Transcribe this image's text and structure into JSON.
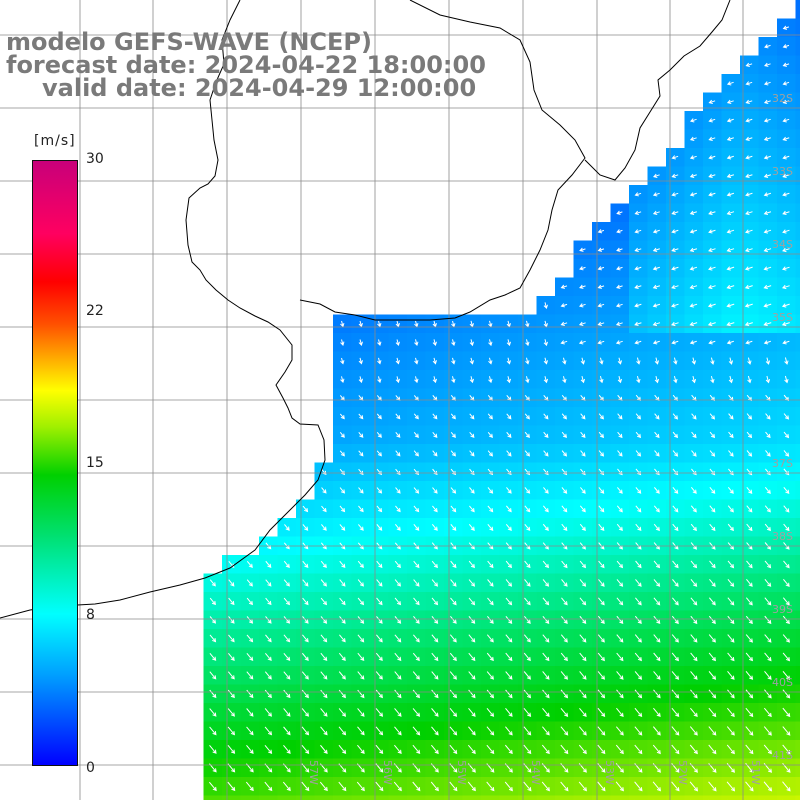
{
  "title": {
    "line1": "modelo GEFS-WAVE (NCEP)",
    "line2": "forecast date: 2024-04-22 18:00:00",
    "line3": "valid date: 2024-04-29 12:00:00"
  },
  "colorbar": {
    "unit": "[m/s]",
    "ticks": [
      "30",
      "22",
      "15",
      "8",
      "0"
    ]
  },
  "map": {
    "lat_labels": [
      "32S",
      "33S",
      "34S",
      "35S",
      "37S",
      "38S",
      "39S",
      "40S",
      "41S"
    ],
    "lon_labels": [
      "57W",
      "56W",
      "55W",
      "54W",
      "53W",
      "52W",
      "51W"
    ],
    "colors": {
      "land": "#ffffff",
      "coast": "#000000",
      "grid": "#8a8a8a",
      "arrow": "#ffffff"
    }
  }
}
